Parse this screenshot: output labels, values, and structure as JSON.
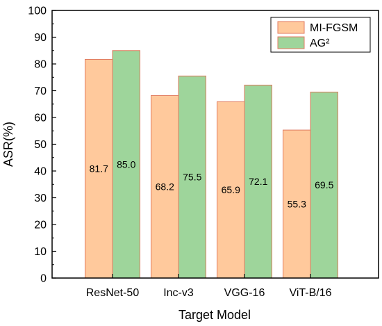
{
  "chart_data": {
    "type": "bar",
    "title": "",
    "xlabel": "Target Model",
    "ylabel": "ASR(%)",
    "categories": [
      "ResNet-50",
      "Inc-v3",
      "VGG-16",
      "ViT-B/16"
    ],
    "ylim": [
      0,
      100
    ],
    "yticks": [
      "0",
      "10",
      "20",
      "30",
      "40",
      "50",
      "60",
      "70",
      "80",
      "90",
      "100"
    ],
    "grid": false,
    "legend_position": "top-right",
    "series": [
      {
        "name": "MI-FGSM",
        "values": [
          81.7,
          68.2,
          65.9,
          55.3
        ],
        "labels": [
          "81.7",
          "68.2",
          "65.9",
          "55.3"
        ],
        "color": "#FFC99C",
        "stroke": "#E07A5F"
      },
      {
        "name": "AG²",
        "values": [
          85.0,
          75.5,
          72.1,
          69.5
        ],
        "labels": [
          "85.0",
          "75.5",
          "72.1",
          "69.5"
        ],
        "color": "#9ED59B",
        "stroke": "#E07A5F"
      }
    ]
  }
}
